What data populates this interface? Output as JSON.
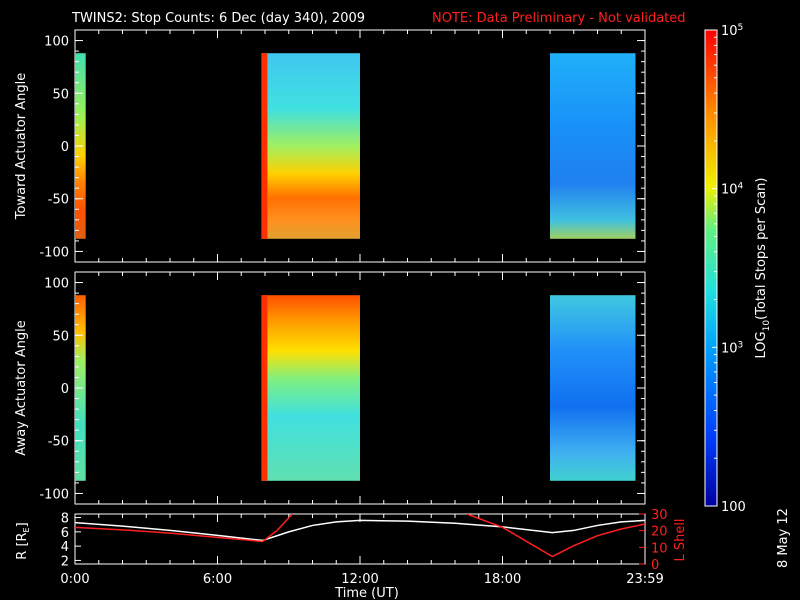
{
  "header": {
    "title": "TWINS2: Stop Counts:  6 Dec (day 340), 2009",
    "note": "NOTE: Data Preliminary - Not validated",
    "note_color": "#ff2020"
  },
  "colorbar": {
    "label": "LOG10(Total Stops per Scan)",
    "label_main": "LOG",
    "label_sub": "10",
    "label_rest": "(Total Stops per Scan)",
    "ticks": [
      {
        "value": 100,
        "text": "100",
        "exp": ""
      },
      {
        "value": 1000,
        "text": "10",
        "exp": "3"
      },
      {
        "value": 10000,
        "text": "10",
        "exp": "4"
      },
      {
        "value": 100000,
        "text": "10",
        "exp": "5"
      }
    ],
    "range": [
      100,
      100000
    ],
    "scale": "log"
  },
  "date_stamp": "8 May 12",
  "xaxis": {
    "label": "Time (UT)",
    "ticks": [
      "0:00",
      "6:00",
      "12:00",
      "18:00",
      "23:59"
    ],
    "tick_hours": [
      0,
      6,
      12,
      18,
      24
    ],
    "range_hours": [
      0,
      24
    ]
  },
  "chart_data": [
    {
      "type": "heatmap",
      "ylabel": "Toward Actuator Angle",
      "ylim": [
        -110,
        110
      ],
      "yticks": [
        -100,
        -50,
        0,
        50,
        100
      ],
      "data_coverage_hours": [
        [
          0.0,
          0.45
        ],
        [
          7.85,
          12.0
        ],
        [
          20.0,
          23.6
        ]
      ],
      "angle_range": [
        -88,
        88
      ],
      "description_hint": "high counts (red) at negative angles"
    },
    {
      "type": "heatmap",
      "ylabel": "Away Actuator Angle",
      "ylim": [
        -110,
        110
      ],
      "yticks": [
        -100,
        -50,
        0,
        50,
        100
      ],
      "data_coverage_hours": [
        [
          0.0,
          0.45
        ],
        [
          7.85,
          12.0
        ],
        [
          20.0,
          23.6
        ]
      ],
      "angle_range": [
        -88,
        88
      ],
      "description_hint": "high counts (red) at positive angles"
    },
    {
      "type": "line",
      "ylabel_left": "R [RE]",
      "ylabel_left_main": "R [R",
      "ylabel_left_sub": "E",
      "ylabel_left_end": "]",
      "ylabel_right": "L Shell",
      "yticks_left": [
        2,
        4,
        6,
        8
      ],
      "ylim_left": [
        1.5,
        8.5
      ],
      "yticks_right": [
        0,
        10,
        20,
        30
      ],
      "ylim_right": [
        0,
        30
      ],
      "series": [
        {
          "name": "R [RE]",
          "color": "#ffffff",
          "axis": "left",
          "x": [
            0,
            2,
            4,
            6,
            7.9,
            9,
            10,
            11,
            12,
            14,
            16,
            18,
            20.1,
            21,
            22,
            23,
            24
          ],
          "y": [
            7.3,
            6.8,
            6.2,
            5.5,
            4.8,
            6.0,
            6.9,
            7.4,
            7.6,
            7.5,
            7.2,
            6.7,
            5.9,
            6.2,
            6.9,
            7.4,
            7.6
          ]
        },
        {
          "name": "L Shell",
          "color": "#ff2020",
          "axis": "right",
          "x": [
            0,
            2,
            4,
            6,
            7.9,
            8.5,
            9.15
          ],
          "y": [
            22,
            20.5,
            18.5,
            16,
            13.5,
            20,
            30
          ],
          "x2": [
            16.5,
            18,
            20.1,
            21,
            22,
            23,
            24
          ],
          "y2": [
            30,
            22,
            4.5,
            11,
            17,
            21,
            24
          ]
        }
      ]
    }
  ]
}
